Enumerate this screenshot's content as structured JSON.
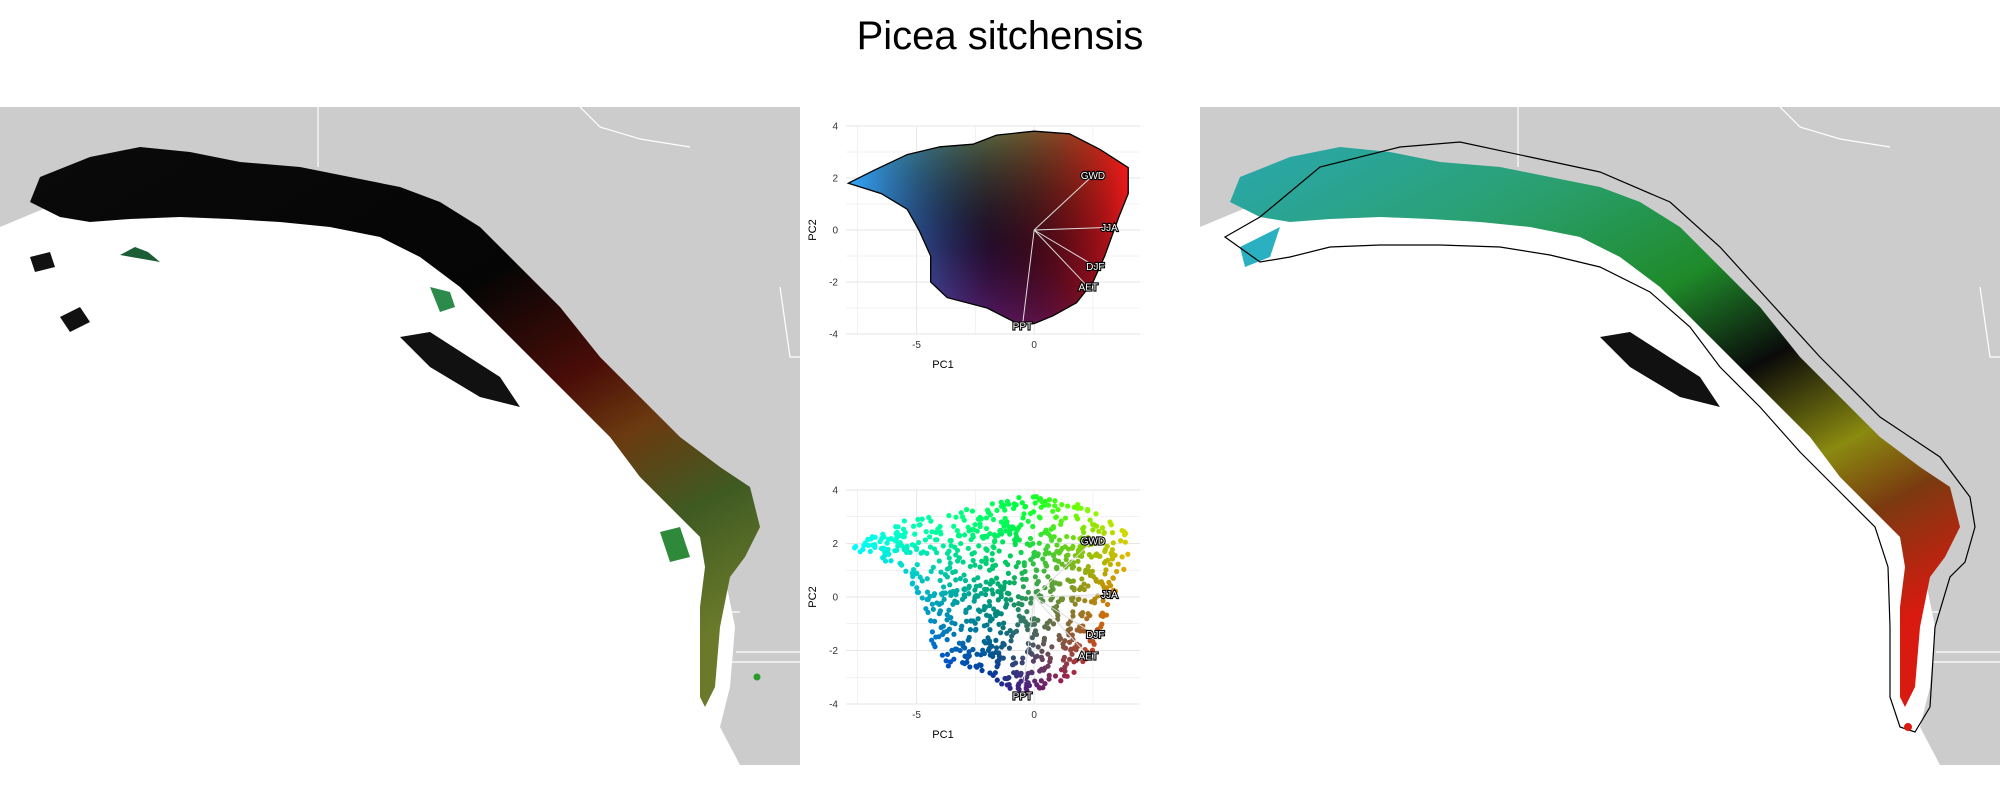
{
  "title": "Picea sitchensis",
  "colors": {
    "land": "#cccccc",
    "ocean": "#ffffff",
    "border": "#ffffff",
    "gridline": "#e6e6e6"
  },
  "maps": [
    {
      "name": "left-map",
      "color_scheme": "climate-pca-rgb"
    },
    {
      "name": "right-map",
      "color_scheme": "climate-pca-rgb-smoothed",
      "has_range_outline": true
    }
  ],
  "chart_data": [
    {
      "type": "scatter",
      "xlabel": "PC1",
      "ylabel": "PC2",
      "xticks": [
        -5,
        0
      ],
      "yticks": [
        4,
        2,
        0,
        -2,
        -4
      ],
      "xlim": [
        -8,
        4.5
      ],
      "ylim": [
        -4,
        4
      ],
      "grid": true,
      "hull": [
        [
          -7.9,
          1.8
        ],
        [
          -6.8,
          2.3
        ],
        [
          -5.4,
          2.9
        ],
        [
          -4,
          3.2
        ],
        [
          -2.6,
          3.3
        ],
        [
          -1.6,
          3.65
        ],
        [
          0,
          3.8
        ],
        [
          1.5,
          3.7
        ],
        [
          2.8,
          3.1
        ],
        [
          4,
          2.4
        ],
        [
          4,
          1.4
        ],
        [
          3.6,
          0.5
        ],
        [
          3,
          -1
        ],
        [
          2.5,
          -2
        ],
        [
          1.8,
          -2.8
        ],
        [
          0.8,
          -3.3
        ],
        [
          0,
          -3.6
        ],
        [
          -0.7,
          -3.6
        ],
        [
          -2,
          -3
        ],
        [
          -3.7,
          -2.6
        ],
        [
          -4.4,
          -2
        ],
        [
          -4.4,
          -1
        ],
        [
          -4.9,
          0
        ],
        [
          -5.4,
          0.8
        ],
        [
          -6.5,
          1.4
        ]
      ],
      "vectors": [
        {
          "label": "GWD",
          "x": 2.5,
          "y": 2.1
        },
        {
          "label": "JJA",
          "x": 3.2,
          "y": 0.1
        },
        {
          "label": "DJF",
          "x": 2.6,
          "y": -1.4
        },
        {
          "label": "AET",
          "x": 2.3,
          "y": -2.2
        },
        {
          "label": "PPT",
          "x": -0.5,
          "y": -3.7
        }
      ]
    },
    {
      "type": "scatter",
      "xlabel": "PC1",
      "ylabel": "PC2",
      "xticks": [
        -5,
        0
      ],
      "yticks": [
        4,
        2,
        0,
        -2,
        -4
      ],
      "xlim": [
        -8,
        4.5
      ],
      "ylim": [
        -4,
        4
      ],
      "grid": true,
      "hull": [
        [
          -7.9,
          1.8
        ],
        [
          -6.8,
          2.3
        ],
        [
          -5.4,
          2.9
        ],
        [
          -4,
          3.2
        ],
        [
          -2.6,
          3.3
        ],
        [
          -1.6,
          3.65
        ],
        [
          0,
          3.8
        ],
        [
          1.5,
          3.7
        ],
        [
          2.8,
          3.1
        ],
        [
          4,
          2.4
        ],
        [
          4,
          1.4
        ],
        [
          3.6,
          0.5
        ],
        [
          3,
          -1
        ],
        [
          2.5,
          -2
        ],
        [
          1.8,
          -2.8
        ],
        [
          0.8,
          -3.3
        ],
        [
          0,
          -3.6
        ],
        [
          -0.7,
          -3.6
        ],
        [
          -2,
          -3
        ],
        [
          -3.7,
          -2.6
        ],
        [
          -4.4,
          -2
        ],
        [
          -4.4,
          -1
        ],
        [
          -4.9,
          0
        ],
        [
          -5.4,
          0.8
        ],
        [
          -6.5,
          1.4
        ]
      ],
      "vectors": [
        {
          "label": "GWD",
          "x": 2.5,
          "y": 2.1
        },
        {
          "label": "JJA",
          "x": 3.2,
          "y": 0.1
        },
        {
          "label": "DJF",
          "x": 2.6,
          "y": -1.4
        },
        {
          "label": "AET",
          "x": 2.3,
          "y": -2.2
        },
        {
          "label": "PPT",
          "x": -0.5,
          "y": -3.7
        }
      ]
    }
  ]
}
